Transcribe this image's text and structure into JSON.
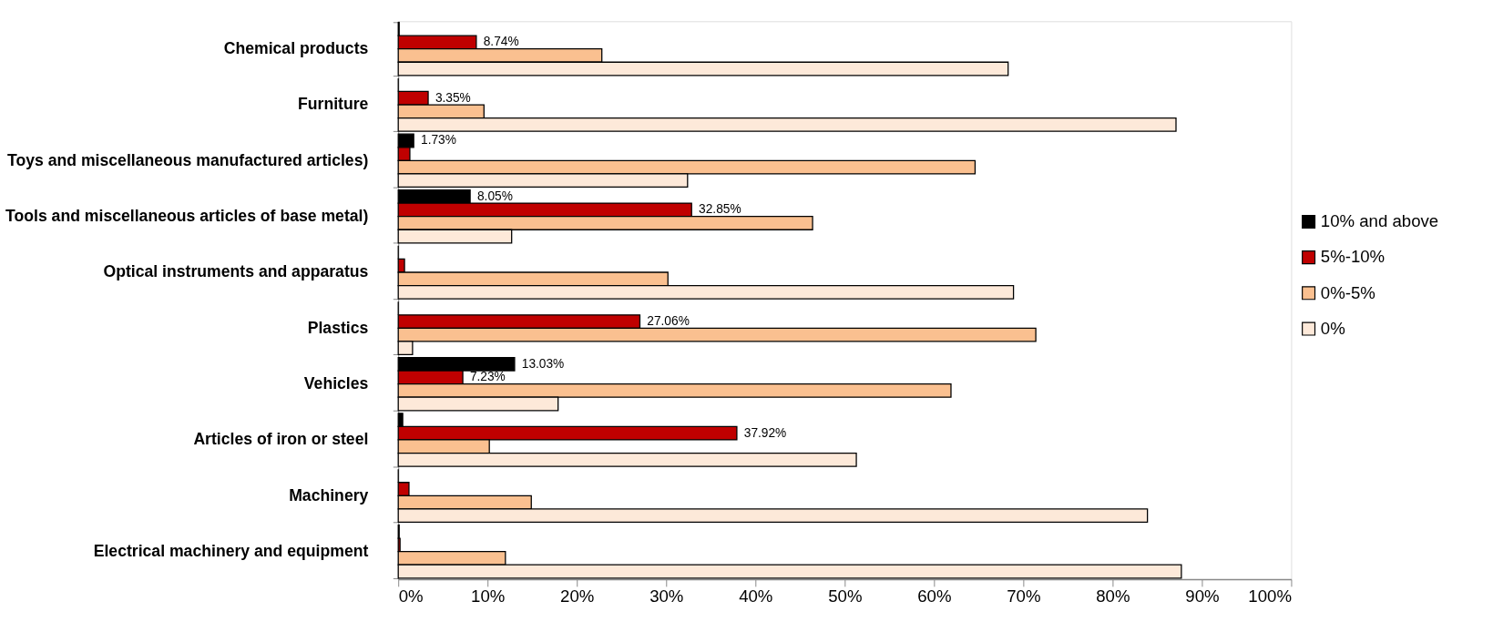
{
  "chart_data": {
    "type": "bar",
    "orientation": "horizontal",
    "categories": [
      "Chemical products",
      "Furniture",
      "Toys and miscellaneous manufactured articles)",
      "Tools and miscellaneous articles of base metal)",
      "Optical instruments and apparatus",
      "Plastics",
      "Vehicles",
      "Articles of iron or steel",
      "Machinery",
      "Electrical machinery and equipment"
    ],
    "series": [
      {
        "name": "10% and above",
        "color": "#000000",
        "values": [
          0.1,
          0,
          1.73,
          8.05,
          0,
          0,
          13.03,
          0.5,
          0,
          0.1
        ],
        "value_labels": [
          null,
          null,
          "1.73%",
          "8.05%",
          null,
          null,
          "13.03%",
          null,
          null,
          null
        ]
      },
      {
        "name": "5%-10%",
        "color": "#c00000",
        "values": [
          8.74,
          3.35,
          1.3,
          32.85,
          0.7,
          27.06,
          7.23,
          37.92,
          1.2,
          0.2
        ],
        "value_labels": [
          "8.74%",
          "3.35%",
          null,
          "32.85%",
          null,
          "27.06%",
          "7.23%",
          "37.92%",
          null,
          null
        ]
      },
      {
        "name": "0%-5%",
        "color": "#fac090",
        "values": [
          22.8,
          9.6,
          64.6,
          46.4,
          30.2,
          71.4,
          61.9,
          10.2,
          14.9,
          12.0
        ]
      },
      {
        "name": "0%",
        "color": "#fde9d9",
        "values": [
          68.3,
          87.1,
          32.4,
          12.7,
          68.9,
          1.6,
          17.9,
          51.3,
          83.9,
          87.7
        ]
      }
    ],
    "xlim": [
      0,
      100
    ],
    "xticks": [
      {
        "value": 0,
        "label": "0%"
      },
      {
        "value": 10,
        "label": "10%"
      },
      {
        "value": 20,
        "label": "20%"
      },
      {
        "value": 30,
        "label": "30%"
      },
      {
        "value": 40,
        "label": "40%"
      },
      {
        "value": 50,
        "label": "50%"
      },
      {
        "value": 60,
        "label": "60%"
      },
      {
        "value": 70,
        "label": "70%"
      },
      {
        "value": 80,
        "label": "80%"
      },
      {
        "value": 90,
        "label": "90%"
      },
      {
        "value": 100,
        "label": "100%"
      }
    ],
    "grid": false,
    "legend": "right"
  }
}
